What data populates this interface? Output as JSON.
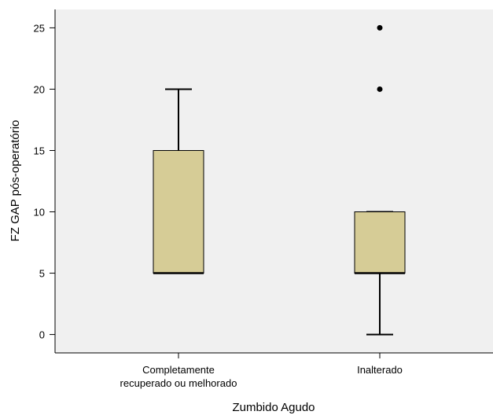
{
  "chart_data": {
    "type": "boxplot",
    "title": "",
    "xlabel": "Zumbido Agudo",
    "ylabel": "FZ GAP pós-operatório",
    "ylim": [
      -1.5,
      26.5
    ],
    "yticks": [
      0,
      5,
      10,
      15,
      20,
      25
    ],
    "grid": false,
    "box_color": "#d6cc96",
    "background_color": "#f0f0f0",
    "categories": [
      [
        "Completamente",
        "recuperado ou melhorado"
      ],
      [
        "Inalterado"
      ]
    ],
    "boxes": [
      {
        "whisker_low": 5,
        "q1": 5,
        "median": 5,
        "q3": 15,
        "whisker_high": 20,
        "outliers": []
      },
      {
        "whisker_low": 0,
        "q1": 5,
        "median": 5,
        "q3": 10,
        "whisker_high": 10,
        "outliers": [
          20,
          25
        ]
      }
    ]
  }
}
